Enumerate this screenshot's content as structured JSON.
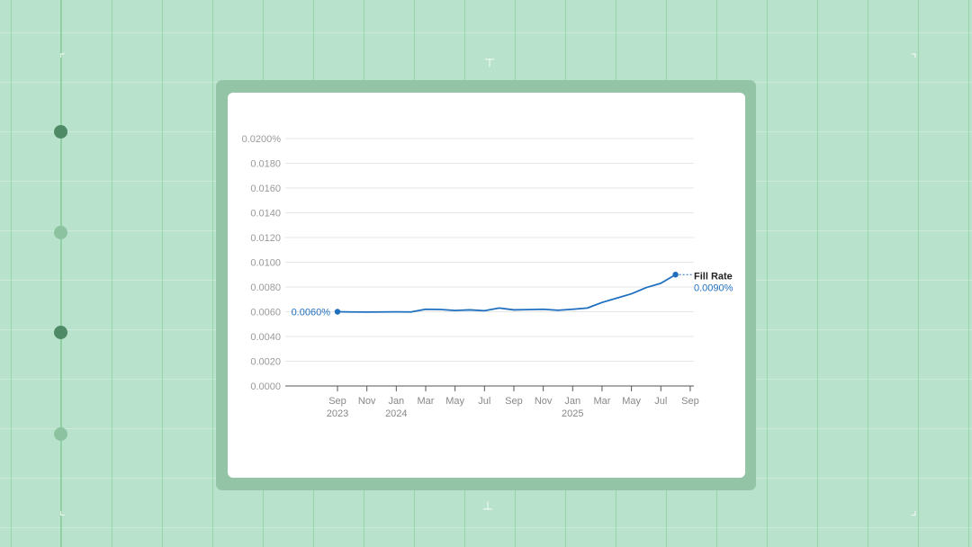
{
  "chart_data": {
    "type": "line",
    "title": "",
    "xlabel": "",
    "ylabel": "",
    "ylim": [
      0,
      0.02
    ],
    "y_ticks": [
      "0.0000",
      "0.0020",
      "0.0040",
      "0.0060",
      "0.0080",
      "0.0100",
      "0.0120",
      "0.0140",
      "0.0160",
      "0.0180",
      "0.0200%"
    ],
    "x_ticks": [
      {
        "date": "2023-09",
        "label": "Sep",
        "sub": "2023"
      },
      {
        "date": "2023-11",
        "label": "Nov",
        "sub": ""
      },
      {
        "date": "2024-01",
        "label": "Jan",
        "sub": "2024"
      },
      {
        "date": "2024-03",
        "label": "Mar",
        "sub": ""
      },
      {
        "date": "2024-05",
        "label": "May",
        "sub": ""
      },
      {
        "date": "2024-07",
        "label": "Jul",
        "sub": ""
      },
      {
        "date": "2024-09",
        "label": "Sep",
        "sub": ""
      },
      {
        "date": "2024-11",
        "label": "Nov",
        "sub": ""
      },
      {
        "date": "2025-01",
        "label": "Jan",
        "sub": "2025"
      },
      {
        "date": "2025-03",
        "label": "Mar",
        "sub": ""
      },
      {
        "date": "2025-05",
        "label": "May",
        "sub": ""
      },
      {
        "date": "2025-07",
        "label": "Jul",
        "sub": ""
      },
      {
        "date": "2025-09",
        "label": "Sep",
        "sub": ""
      }
    ],
    "series": [
      {
        "name": "Fill Rate",
        "color": "#1f6fbf",
        "x": [
          "2023-09",
          "2023-10",
          "2023-11",
          "2023-12",
          "2024-01",
          "2024-02",
          "2024-03",
          "2024-04",
          "2024-05",
          "2024-06",
          "2024-07",
          "2024-08",
          "2024-09",
          "2024-10",
          "2024-11",
          "2024-12",
          "2025-01",
          "2025-02",
          "2025-03",
          "2025-04",
          "2025-05",
          "2025-06",
          "2025-07",
          "2025-08"
        ],
        "values": [
          0.006,
          0.00598,
          0.00597,
          0.00598,
          0.00599,
          0.00598,
          0.0062,
          0.00618,
          0.0061,
          0.00615,
          0.00608,
          0.0063,
          0.00615,
          0.00617,
          0.0062,
          0.00612,
          0.0062,
          0.0063,
          0.00675,
          0.0071,
          0.00745,
          0.00795,
          0.0083,
          0.009
        ]
      }
    ],
    "start_label": "0.0060%",
    "end_label_name": "Fill Rate",
    "end_label_value": "0.0090%",
    "grid": true,
    "legend": "none"
  }
}
